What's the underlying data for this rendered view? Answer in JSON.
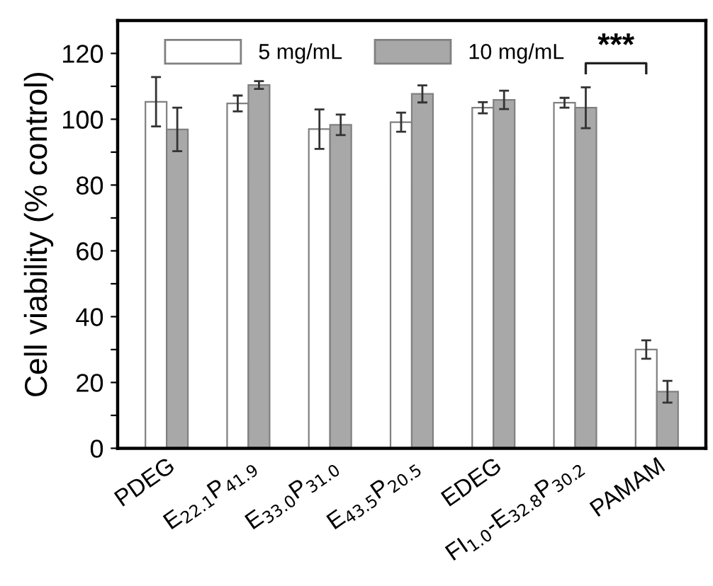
{
  "chart_data": {
    "type": "bar",
    "ylabel": "Cell viability (% control)",
    "categories": [
      "PDEG",
      "E$_{22.1}$P$_{41.9}$",
      "E$_{33.0}$P$_{31.0}$",
      "E$_{43.5}$P$_{20.5}$",
      "EDEG",
      "FI$_{1.0}$-E$_{32.8}$P$_{30.2}$",
      "PAMAM"
    ],
    "series": [
      {
        "name": "5 mg/mL",
        "color": "#ffffff",
        "values": [
          105.3,
          104.8,
          97,
          99.1,
          103.5,
          105,
          30
        ],
        "errors": [
          7.5,
          2.4,
          6,
          2.9,
          1.7,
          1.5,
          2.8
        ]
      },
      {
        "name": "10 mg/mL",
        "color": "#a8a8a8",
        "values": [
          96.9,
          110.4,
          98.3,
          107.7,
          105.9,
          103.5,
          17.2
        ],
        "errors": [
          6.6,
          1.2,
          3.1,
          2.6,
          2.8,
          6.2,
          3.3
        ]
      }
    ],
    "ylim": [
      0,
      130
    ],
    "yticks": [
      0,
      {
        "value": 10,
        "label": null
      },
      20,
      {
        "value": 30,
        "label": null
      },
      40,
      {
        "value": 50,
        "label": null
      },
      60,
      {
        "value": 70,
        "label": null
      },
      80,
      {
        "value": 90,
        "label": null
      },
      100,
      {
        "value": 110,
        "label": null
      },
      120
    ],
    "annotations": [
      "***"
    ],
    "legend": "top",
    "grid": false
  }
}
